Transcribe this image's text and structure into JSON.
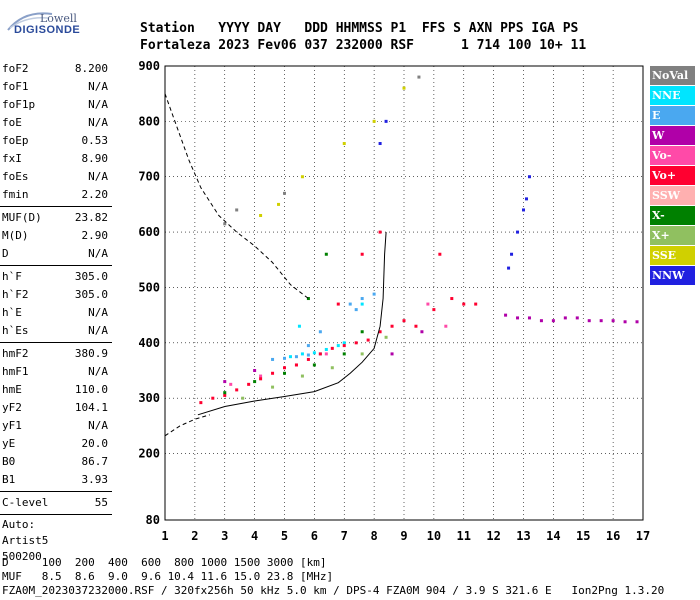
{
  "logo": {
    "line1": "Lowell",
    "line2": "DIGISONDE"
  },
  "header": {
    "row1": [
      "Station",
      "YYYY DAY",
      "DDD HHMMSS",
      "P1",
      "FFS",
      "S",
      "AXN",
      "PPS",
      "IGA",
      "PS"
    ],
    "row2": [
      "Fortaleza",
      "2023 Fev06",
      "037 232000",
      "RSF",
      "",
      "1",
      "714",
      "100",
      "10+",
      "11"
    ]
  },
  "params": {
    "group1": [
      {
        "label": "foF2",
        "value": "8.200"
      },
      {
        "label": "foF1",
        "value": "N/A"
      },
      {
        "label": "foF1p",
        "value": "N/A"
      },
      {
        "label": "foE",
        "value": "N/A"
      },
      {
        "label": "foEp",
        "value": "0.53"
      },
      {
        "label": "fxI",
        "value": "8.90"
      },
      {
        "label": "foEs",
        "value": "N/A"
      },
      {
        "label": "fmin",
        "value": "2.20"
      }
    ],
    "group2": [
      {
        "label": "MUF(D)",
        "value": "23.82"
      },
      {
        "label": "M(D)",
        "value": "2.90"
      },
      {
        "label": "D",
        "value": "N/A"
      }
    ],
    "group3": [
      {
        "label": "h`F",
        "value": "305.0"
      },
      {
        "label": "h`F2",
        "value": "305.0"
      },
      {
        "label": "h`E",
        "value": "N/A"
      },
      {
        "label": "h`Es",
        "value": "N/A"
      }
    ],
    "group4": [
      {
        "label": "hmF2",
        "value": "380.9"
      },
      {
        "label": "hmF1",
        "value": "N/A"
      },
      {
        "label": "hmE",
        "value": "110.0"
      },
      {
        "label": "yF2",
        "value": "104.1"
      },
      {
        "label": "yF1",
        "value": "N/A"
      },
      {
        "label": "yE",
        "value": "20.0"
      },
      {
        "label": "B0",
        "value": "86.7"
      },
      {
        "label": "B1",
        "value": "3.93"
      }
    ],
    "group5": [
      {
        "label": "C-level",
        "value": "55"
      }
    ],
    "auto_lines": [
      "Auto:",
      "Artist5",
      "500200"
    ]
  },
  "legend": [
    {
      "label": "NoVal",
      "color": "#808080"
    },
    {
      "label": "NNE",
      "color": "#00e5ff"
    },
    {
      "label": "E",
      "color": "#4aa8f0"
    },
    {
      "label": "W",
      "color": "#b000a8"
    },
    {
      "label": "Vo-",
      "color": "#ff4aa8"
    },
    {
      "label": "Vo+",
      "color": "#ff0030"
    },
    {
      "label": "SSW",
      "color": "#ffb0b0"
    },
    {
      "label": "X-",
      "color": "#008000"
    },
    {
      "label": "X+",
      "color": "#90c060"
    },
    {
      "label": "SSE",
      "color": "#d0d000"
    },
    {
      "label": "NNW",
      "color": "#2020e0"
    }
  ],
  "footer": {
    "line1": "D     100  200  400  600  800 1000 1500 3000 [km]",
    "line2": "MUF   8.5  8.6  9.0  9.6 10.4 11.6 15.0 23.8 [MHz]",
    "line3": "FZA0M_2023037232000.RSF / 320fx256h 50 kHz 5.0 km / DPS-4 FZA0M 904 / 3.9 S 321.6 E   Ion2Png 1.3.20"
  },
  "chart_data": {
    "type": "scatter",
    "title": "",
    "xlabel": "",
    "ylabel": "",
    "xlim": [
      1,
      17
    ],
    "ylim": [
      80,
      900
    ],
    "x_ticks": [
      1,
      2,
      3,
      4,
      5,
      6,
      7,
      8,
      9,
      10,
      11,
      12,
      13,
      14,
      15,
      16,
      17
    ],
    "y_ticks": [
      80,
      200,
      300,
      400,
      500,
      600,
      700,
      800,
      900
    ],
    "grid": true,
    "legend_position": "right",
    "series": [
      {
        "name": "NNE",
        "color": "#00e5ff",
        "points": [
          [
            5.2,
            375
          ],
          [
            5.6,
            380
          ],
          [
            6.0,
            382
          ],
          [
            6.4,
            388
          ],
          [
            7.0,
            400
          ],
          [
            7.6,
            470
          ],
          [
            5.5,
            430
          ],
          [
            6.8,
            395
          ]
        ]
      },
      {
        "name": "E",
        "color": "#4aa8f0",
        "points": [
          [
            4.6,
            370
          ],
          [
            5.0,
            372
          ],
          [
            5.4,
            375
          ],
          [
            5.8,
            378
          ],
          [
            6.2,
            380
          ],
          [
            7.2,
            470
          ],
          [
            7.6,
            480
          ],
          [
            8.0,
            488
          ],
          [
            7.4,
            460
          ],
          [
            6.2,
            420
          ],
          [
            5.8,
            395
          ]
        ]
      },
      {
        "name": "W",
        "color": "#b000a8",
        "points": [
          [
            12.4,
            450
          ],
          [
            12.8,
            445
          ],
          [
            13.2,
            445
          ],
          [
            13.6,
            440
          ],
          [
            14.0,
            440
          ],
          [
            14.4,
            445
          ],
          [
            14.8,
            445
          ],
          [
            15.2,
            440
          ],
          [
            15.6,
            440
          ],
          [
            16.0,
            440
          ],
          [
            16.4,
            438
          ],
          [
            16.8,
            438
          ],
          [
            3.0,
            330
          ],
          [
            4.0,
            350
          ],
          [
            8.6,
            380
          ],
          [
            9.6,
            420
          ]
        ]
      },
      {
        "name": "Vo-",
        "color": "#ff4aa8",
        "points": [
          [
            3.2,
            325
          ],
          [
            4.2,
            340
          ],
          [
            5.4,
            360
          ],
          [
            6.4,
            380
          ],
          [
            9.8,
            470
          ],
          [
            10.4,
            430
          ]
        ]
      },
      {
        "name": "Vo+",
        "color": "#ff0030",
        "points": [
          [
            2.2,
            292
          ],
          [
            2.6,
            300
          ],
          [
            3.0,
            305
          ],
          [
            3.4,
            315
          ],
          [
            3.8,
            325
          ],
          [
            4.2,
            335
          ],
          [
            4.6,
            345
          ],
          [
            5.0,
            355
          ],
          [
            5.4,
            360
          ],
          [
            5.8,
            370
          ],
          [
            6.2,
            380
          ],
          [
            6.6,
            390
          ],
          [
            7.0,
            395
          ],
          [
            7.4,
            400
          ],
          [
            7.8,
            405
          ],
          [
            8.2,
            420
          ],
          [
            8.6,
            430
          ],
          [
            9.0,
            440
          ],
          [
            9.4,
            430
          ],
          [
            10.0,
            460
          ],
          [
            10.2,
            560
          ],
          [
            10.6,
            480
          ],
          [
            11.0,
            470
          ],
          [
            11.4,
            470
          ],
          [
            8.2,
            600
          ],
          [
            7.6,
            560
          ],
          [
            6.8,
            470
          ]
        ]
      },
      {
        "name": "X-",
        "color": "#008000",
        "points": [
          [
            3.0,
            310
          ],
          [
            4.0,
            330
          ],
          [
            5.0,
            345
          ],
          [
            6.0,
            360
          ],
          [
            7.0,
            380
          ],
          [
            7.6,
            420
          ],
          [
            6.4,
            560
          ],
          [
            5.8,
            480
          ]
        ]
      },
      {
        "name": "X+",
        "color": "#90c060",
        "points": [
          [
            3.6,
            300
          ],
          [
            4.6,
            320
          ],
          [
            5.6,
            340
          ],
          [
            6.6,
            355
          ],
          [
            7.6,
            380
          ],
          [
            8.4,
            410
          ]
        ]
      },
      {
        "name": "SSE",
        "color": "#d0d000",
        "points": [
          [
            4.2,
            630
          ],
          [
            4.8,
            650
          ],
          [
            5.6,
            700
          ],
          [
            7.0,
            760
          ],
          [
            8.0,
            800
          ],
          [
            9.0,
            860
          ]
        ]
      },
      {
        "name": "NNW",
        "color": "#2020e0",
        "points": [
          [
            12.5,
            535
          ],
          [
            12.6,
            560
          ],
          [
            12.8,
            600
          ],
          [
            13.0,
            640
          ],
          [
            13.1,
            660
          ],
          [
            13.2,
            700
          ],
          [
            8.2,
            760
          ],
          [
            8.4,
            800
          ]
        ]
      },
      {
        "name": "NoVal",
        "color": "#808080",
        "points": [
          [
            3.0,
            615
          ],
          [
            3.4,
            640
          ],
          [
            5.0,
            670
          ],
          [
            9.5,
            880
          ]
        ]
      }
    ],
    "extra_traces": [
      {
        "id": "solid-profile",
        "style": "solid",
        "points": [
          [
            2.1,
            270
          ],
          [
            3.0,
            285
          ],
          [
            4.0,
            295
          ],
          [
            5.0,
            303
          ],
          [
            6.0,
            312
          ],
          [
            6.8,
            328
          ],
          [
            7.2,
            345
          ],
          [
            7.6,
            365
          ],
          [
            8.0,
            390
          ],
          [
            8.2,
            430
          ],
          [
            8.3,
            480
          ],
          [
            8.35,
            560
          ],
          [
            8.4,
            600
          ]
        ]
      },
      {
        "id": "dashed-trace",
        "style": "dashed",
        "points": [
          [
            1.0,
            850
          ],
          [
            1.4,
            790
          ],
          [
            1.8,
            730
          ],
          [
            2.2,
            680
          ],
          [
            2.8,
            630
          ],
          [
            3.4,
            600
          ],
          [
            4.0,
            575
          ],
          [
            4.6,
            545
          ],
          [
            5.2,
            505
          ],
          [
            5.8,
            480
          ]
        ]
      },
      {
        "id": "dashed-low-trace",
        "style": "dashed",
        "points": [
          [
            1.0,
            232
          ],
          [
            1.5,
            250
          ],
          [
            2.0,
            262
          ],
          [
            2.5,
            270
          ]
        ]
      }
    ]
  }
}
